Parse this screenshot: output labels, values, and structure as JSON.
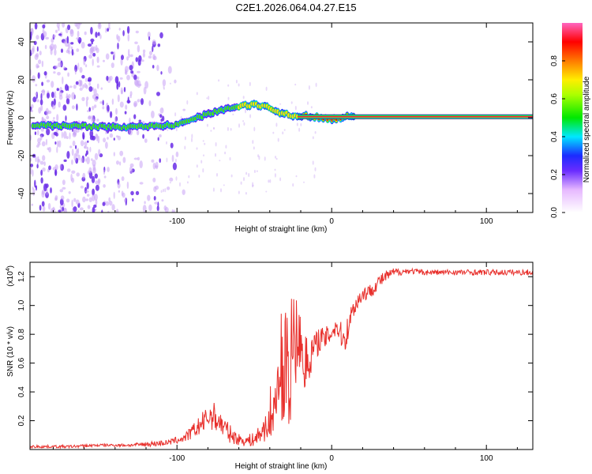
{
  "figure_title": "C2E1.2026.064.04.27.E15",
  "colors": {
    "snr_line": "#e8302c",
    "axis": "#000000",
    "background": "#ffffff",
    "spectrum_low": "#7a2cf0"
  },
  "chart_data": [
    {
      "type": "heatmap",
      "title": "C2E1.2026.064.04.27.E15",
      "xlabel": "Height of straight line (km)",
      "ylabel": "Frequency (Hz)",
      "xlim": [
        -195,
        130
      ],
      "ylim": [
        -50,
        50
      ],
      "x_ticks": [
        -100,
        0,
        100
      ],
      "x_tick_labels": [
        "-100",
        "0",
        "100"
      ],
      "y_ticks": [
        -40,
        -20,
        0,
        20,
        40
      ],
      "y_tick_labels": [
        "-40",
        "-20",
        "0",
        "20",
        "40"
      ],
      "ridge_x": [
        -190,
        -160,
        -140,
        -120,
        -100,
        -90,
        -80,
        -70,
        -60,
        -50,
        -40,
        -35,
        -30,
        -25,
        -20,
        -10,
        -5,
        0,
        5,
        10,
        130
      ],
      "ridge_freq": [
        -4,
        -4.5,
        -5,
        -4.5,
        -4,
        -1,
        2,
        4,
        6,
        7,
        5,
        3,
        2,
        1,
        1,
        0.5,
        0,
        -1,
        0,
        0.5,
        0.5
      ],
      "colorbar": {
        "label": "Normalized spectral amplitude",
        "range": [
          0,
          1
        ],
        "ticks": [
          0.0,
          0.2,
          0.4,
          0.6,
          0.8
        ],
        "tick_labels": [
          "0.0",
          "0.2",
          "0.4",
          "0.6",
          "0.8"
        ]
      }
    },
    {
      "type": "line",
      "xlabel": "Height of straight line (km)",
      "ylabel": "SNR (10 * v/v)",
      "yscale_label": "(x10",
      "yscale_exponent": "4",
      "yscale_suffix": ")",
      "xlim": [
        -195,
        130
      ],
      "ylim": [
        0,
        1.3
      ],
      "x_ticks": [
        -100,
        0,
        100
      ],
      "x_tick_labels": [
        "-100",
        "0",
        "100"
      ],
      "y_ticks": [
        0.2,
        0.4,
        0.6,
        0.8,
        1.0,
        1.2
      ],
      "y_tick_labels": [
        "0.2",
        "0.4",
        "0.6",
        "0.8",
        "1.0",
        "1.2"
      ],
      "series": [
        {
          "name": "SNR",
          "x": [
            -195,
            -170,
            -150,
            -130,
            -115,
            -105,
            -95,
            -88,
            -82,
            -78,
            -75,
            -70,
            -65,
            -60,
            -55,
            -50,
            -45,
            -40,
            -35,
            -32,
            -30,
            -27,
            -25,
            -22,
            -20,
            -18,
            -15,
            -12,
            -10,
            -8,
            -5,
            -3,
            0,
            3,
            5,
            8,
            10,
            12,
            15,
            20,
            25,
            30,
            35,
            40,
            50,
            60,
            80,
            100,
            130
          ],
          "values": [
            0.02,
            0.02,
            0.03,
            0.03,
            0.04,
            0.05,
            0.08,
            0.14,
            0.2,
            0.24,
            0.22,
            0.16,
            0.1,
            0.07,
            0.06,
            0.07,
            0.12,
            0.22,
            0.36,
            0.48,
            0.62,
            0.5,
            0.7,
            0.78,
            0.72,
            0.6,
            0.62,
            0.7,
            0.72,
            0.78,
            0.76,
            0.78,
            0.82,
            0.86,
            0.82,
            0.76,
            0.82,
            0.92,
            1.0,
            1.08,
            1.1,
            1.16,
            1.2,
            1.23,
            1.24,
            1.23,
            1.23,
            1.23,
            1.23
          ],
          "noise": [
            0.01,
            0.01,
            0.01,
            0.01,
            0.02,
            0.02,
            0.03,
            0.06,
            0.08,
            0.1,
            0.1,
            0.08,
            0.06,
            0.04,
            0.04,
            0.05,
            0.08,
            0.14,
            0.22,
            0.3,
            0.38,
            0.4,
            0.35,
            0.3,
            0.28,
            0.22,
            0.15,
            0.12,
            0.1,
            0.1,
            0.08,
            0.08,
            0.08,
            0.08,
            0.08,
            0.1,
            0.1,
            0.08,
            0.06,
            0.06,
            0.05,
            0.05,
            0.04,
            0.03,
            0.02,
            0.02,
            0.02,
            0.02,
            0.02
          ]
        }
      ]
    }
  ]
}
